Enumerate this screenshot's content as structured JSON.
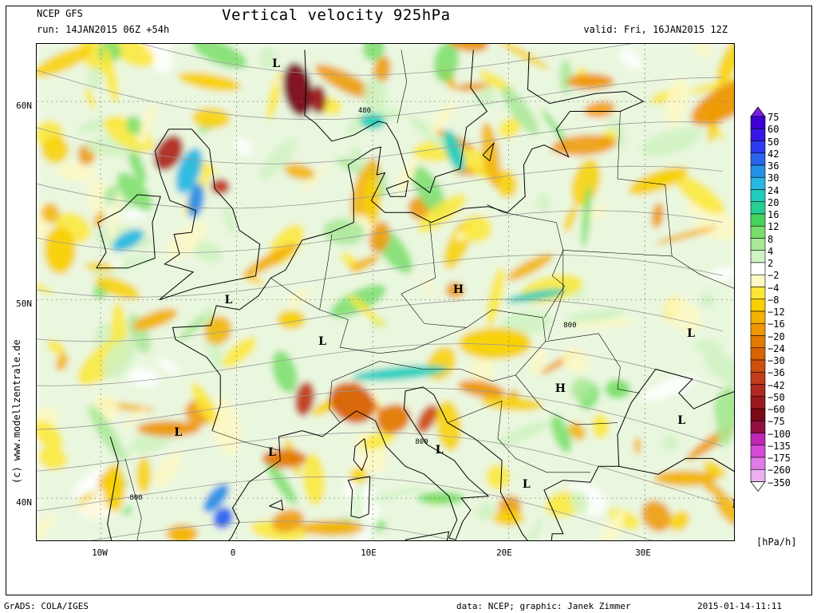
{
  "header": {
    "title": "Vertical velocity 925hPa",
    "model": "NCEP GFS",
    "run": "run: 14JAN2015 06Z +54h",
    "valid": "valid: Fri, 16JAN2015 12Z"
  },
  "axes": {
    "lat_labels": [
      "60N",
      "50N",
      "40N"
    ],
    "lon_labels": [
      "10W",
      "0",
      "10E",
      "20E",
      "30E"
    ]
  },
  "credit": "(c) www.modellzentrale.de",
  "legend": {
    "units": "[hPa/h]",
    "labels": [
      "75",
      "60",
      "50",
      "42",
      "36",
      "30",
      "24",
      "20",
      "16",
      "12",
      "8",
      "4",
      "2",
      "−2",
      "−4",
      "−8",
      "−12",
      "−16",
      "−20",
      "−24",
      "−30",
      "−36",
      "−42",
      "−50",
      "−60",
      "−75",
      "−100",
      "−135",
      "−175",
      "−260",
      "−350"
    ],
    "colors": [
      "#3f00d6",
      "#3417e6",
      "#2b3cf0",
      "#2a63ee",
      "#268fe8",
      "#26b8e2",
      "#20cdbd",
      "#25cf95",
      "#44d45e",
      "#7ade6a",
      "#a8e896",
      "#cff2c2",
      "#ffffff",
      "#fdf8c4",
      "#fbe836",
      "#f8d000",
      "#f3b200",
      "#ee9600",
      "#e27a00",
      "#d96100",
      "#d04e10",
      "#c03c1a",
      "#b02a20",
      "#9a1a1e",
      "#7a0a15",
      "#901040",
      "#c026b4",
      "#d64ad8",
      "#e07ae6",
      "#ecb0f2"
    ]
  },
  "map_labels": [
    {
      "text": "L",
      "lon": 2.9,
      "lat": 61.9
    },
    {
      "text": "L",
      "lon": -0.6,
      "lat": 50.0
    },
    {
      "text": "H",
      "lon": 16.3,
      "lat": 50.5
    },
    {
      "text": "L",
      "lon": 6.3,
      "lat": 47.9
    },
    {
      "text": "L",
      "lon": 33.4,
      "lat": 48.3
    },
    {
      "text": "H",
      "lon": 23.8,
      "lat": 45.5
    },
    {
      "text": "L",
      "lon": -4.3,
      "lat": 43.3
    },
    {
      "text": "L",
      "lon": 2.6,
      "lat": 42.3
    },
    {
      "text": "L",
      "lon": 14.9,
      "lat": 42.4
    },
    {
      "text": "L",
      "lon": 21.3,
      "lat": 40.7
    },
    {
      "text": "L",
      "lon": 32.7,
      "lat": 43.9
    },
    {
      "text": "L",
      "lon": 36.7,
      "lat": 39.7
    }
  ],
  "contour_labels": [
    {
      "text": "480",
      "lon": 9.4,
      "lat": 59.5
    },
    {
      "text": "800",
      "lon": 24.5,
      "lat": 48.7
    },
    {
      "text": "800",
      "lon": 13.6,
      "lat": 42.8
    },
    {
      "text": "800",
      "lon": -7.4,
      "lat": 40.0
    }
  ],
  "footer": {
    "left": "GrADS: COLA/IGES",
    "middle": "data: NCEP; graphic: Janek Zimmer",
    "right": "2015-01-14-11:11"
  }
}
